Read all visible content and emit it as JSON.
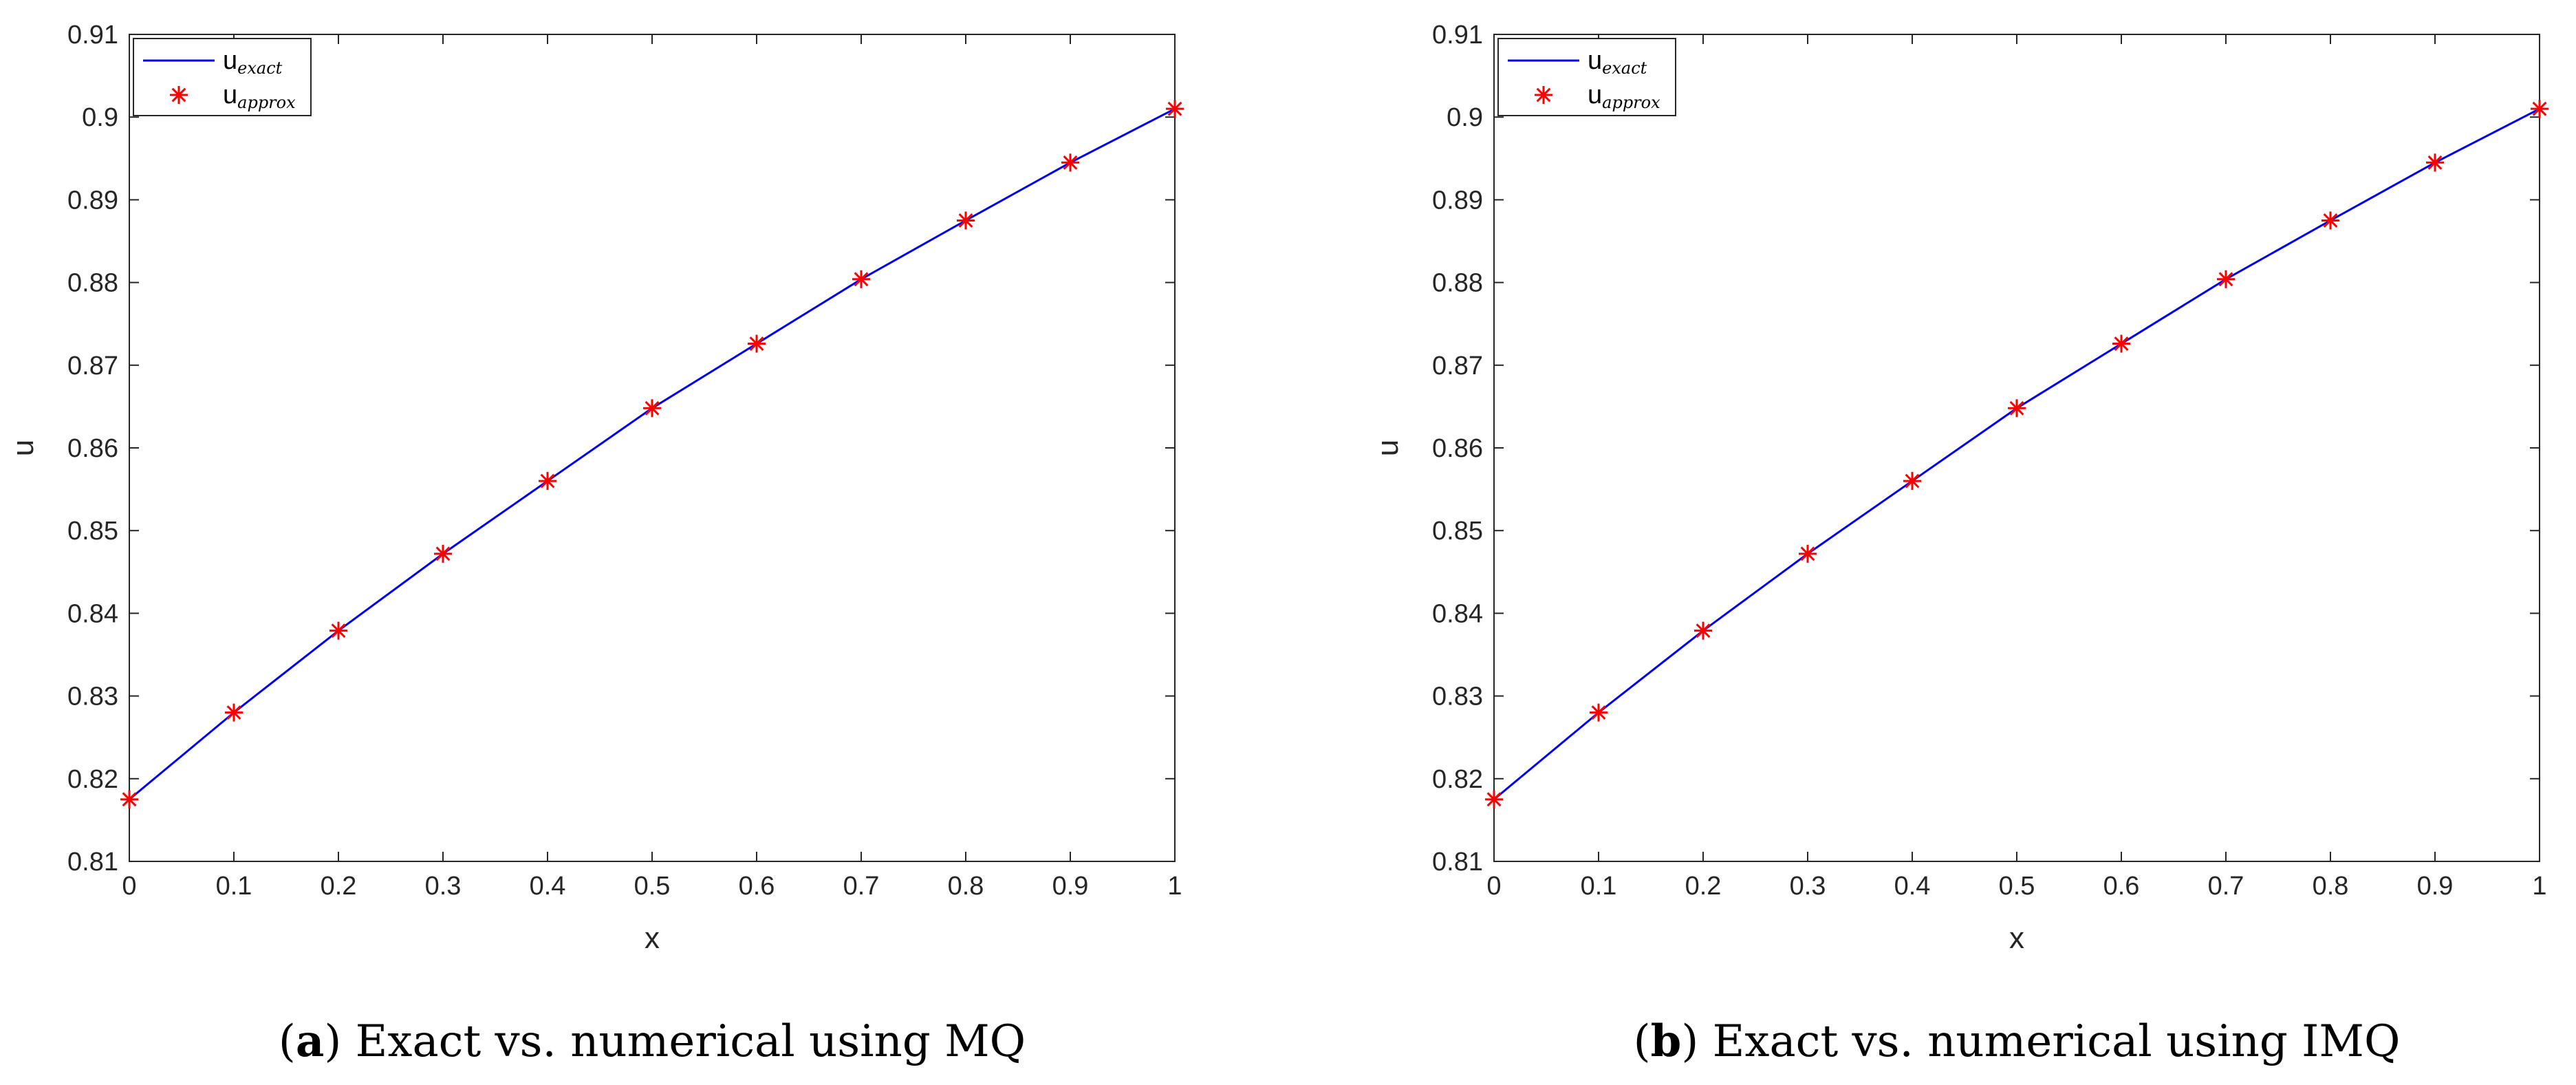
{
  "colors": {
    "exact": "#0000ff",
    "approx": "#ff0000",
    "axis": "#262626"
  },
  "chart_data": [
    {
      "id": "a",
      "type": "line",
      "title": "",
      "xlabel": "x",
      "ylabel": "u",
      "xlim": [
        0,
        1
      ],
      "ylim": [
        0.81,
        0.91
      ],
      "xticks": [
        "0",
        "0.1",
        "0.2",
        "0.3",
        "0.4",
        "0.5",
        "0.6",
        "0.7",
        "0.8",
        "0.9",
        "1"
      ],
      "yticks": [
        "0.81",
        "0.82",
        "0.83",
        "0.84",
        "0.85",
        "0.86",
        "0.87",
        "0.88",
        "0.89",
        "0.9",
        "0.91"
      ],
      "legend_position": "top-left",
      "legend": [
        {
          "base": "u",
          "sub": "exact",
          "marker": "line"
        },
        {
          "base": "u",
          "sub": "approx",
          "marker": "star"
        }
      ],
      "x": [
        0,
        0.1,
        0.2,
        0.3,
        0.4,
        0.5,
        0.6,
        0.7,
        0.8,
        0.9,
        1.0
      ],
      "series": [
        {
          "name": "u_exact",
          "style": "line",
          "values": [
            0.8175,
            0.828,
            0.8379,
            0.8472,
            0.856,
            0.8648,
            0.8726,
            0.8804,
            0.8875,
            0.8945,
            0.901
          ]
        },
        {
          "name": "u_approx",
          "style": "star",
          "values": [
            0.8175,
            0.828,
            0.8379,
            0.8472,
            0.856,
            0.8648,
            0.8726,
            0.8804,
            0.8875,
            0.8945,
            0.901
          ]
        }
      ],
      "caption_label": "a",
      "caption_text": " Exact vs. numerical using MQ"
    },
    {
      "id": "b",
      "type": "line",
      "title": "",
      "xlabel": "x",
      "ylabel": "u",
      "xlim": [
        0,
        1
      ],
      "ylim": [
        0.81,
        0.91
      ],
      "xticks": [
        "0",
        "0.1",
        "0.2",
        "0.3",
        "0.4",
        "0.5",
        "0.6",
        "0.7",
        "0.8",
        "0.9",
        "1"
      ],
      "yticks": [
        "0.81",
        "0.82",
        "0.83",
        "0.84",
        "0.85",
        "0.86",
        "0.87",
        "0.88",
        "0.89",
        "0.9",
        "0.91"
      ],
      "legend_position": "top-left",
      "legend": [
        {
          "base": "u",
          "sub": "exact",
          "marker": "line"
        },
        {
          "base": "u",
          "sub": "approx",
          "marker": "star"
        }
      ],
      "x": [
        0,
        0.1,
        0.2,
        0.3,
        0.4,
        0.5,
        0.6,
        0.7,
        0.8,
        0.9,
        1.0
      ],
      "series": [
        {
          "name": "u_exact",
          "style": "line",
          "values": [
            0.8175,
            0.828,
            0.8379,
            0.8472,
            0.856,
            0.8648,
            0.8726,
            0.8804,
            0.8875,
            0.8945,
            0.901
          ]
        },
        {
          "name": "u_approx",
          "style": "star",
          "values": [
            0.8175,
            0.828,
            0.8379,
            0.8472,
            0.856,
            0.8648,
            0.8726,
            0.8804,
            0.8875,
            0.8945,
            0.901
          ]
        }
      ],
      "caption_label": "b",
      "caption_text": " Exact vs. numerical using IMQ"
    }
  ]
}
